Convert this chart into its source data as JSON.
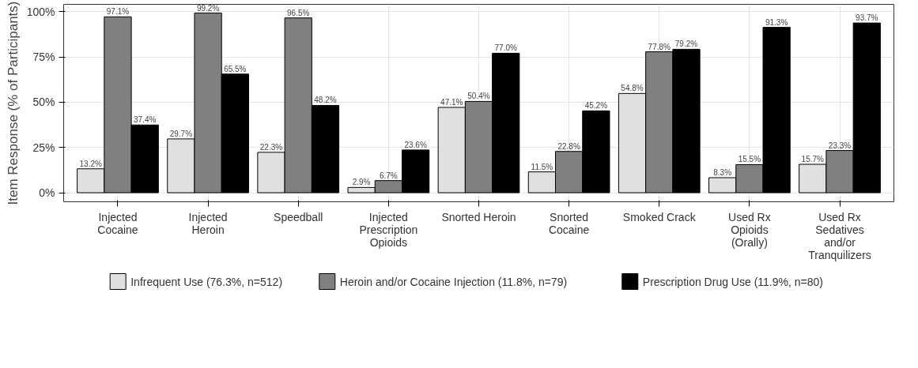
{
  "chart_data": {
    "type": "bar",
    "ylabel": "Item Response (% of Participants)",
    "categories": [
      "Injected\nCocaine",
      "Injected\nHeroin",
      "Speedball",
      "Injected\nPrescription\nOpioids",
      "Snorted Heroin",
      "Snorted\nCocaine",
      "Smoked Crack",
      "Used Rx\nOpioids\n(Orally)",
      "Used Rx\nSedatives\nand/or\nTranquilizers"
    ],
    "series": [
      {
        "name": "Infrequent Use (76.3%, n=512)",
        "color": "#e0e0e0",
        "values": [
          13.2,
          29.7,
          22.3,
          2.9,
          47.1,
          11.5,
          54.8,
          8.3,
          15.7
        ],
        "value_labels": [
          "13.2%",
          "29.7%",
          "22.3%",
          "2.9%",
          "47.1%",
          "11.5%",
          "54.8%",
          "8.3%",
          "15.7%"
        ]
      },
      {
        "name": "Heroin and/or Cocaine Injection (11.8%, n=79)",
        "color": "#808080",
        "values": [
          97.1,
          99.2,
          96.5,
          6.7,
          50.4,
          22.8,
          77.8,
          15.5,
          23.3
        ],
        "value_labels": [
          "97.1%",
          "99.2%",
          "96.5%",
          "6.7%",
          "50.4%",
          "22.8%",
          "77.8%",
          "15.5%",
          "23.3%"
        ]
      },
      {
        "name": "Prescription Drug Use (11.9%, n=80)",
        "color": "#000000",
        "values": [
          37.4,
          65.5,
          48.2,
          23.6,
          77.0,
          45.2,
          79.2,
          91.3,
          93.7
        ],
        "value_labels": [
          "37.4%",
          "65.5%",
          "48.2%",
          "23.6%",
          "77.0%",
          "45.2%",
          "79.2%",
          "91.3%",
          "93.7%"
        ]
      }
    ],
    "ylim": [
      -5,
      104
    ],
    "yticks": [
      {
        "value": 0,
        "label": "0%"
      },
      {
        "value": 25,
        "label": "25%"
      },
      {
        "value": 50,
        "label": "50%"
      },
      {
        "value": 75,
        "label": "75%"
      },
      {
        "value": 100,
        "label": "100%"
      }
    ],
    "grid": true,
    "legend": "bottom"
  }
}
